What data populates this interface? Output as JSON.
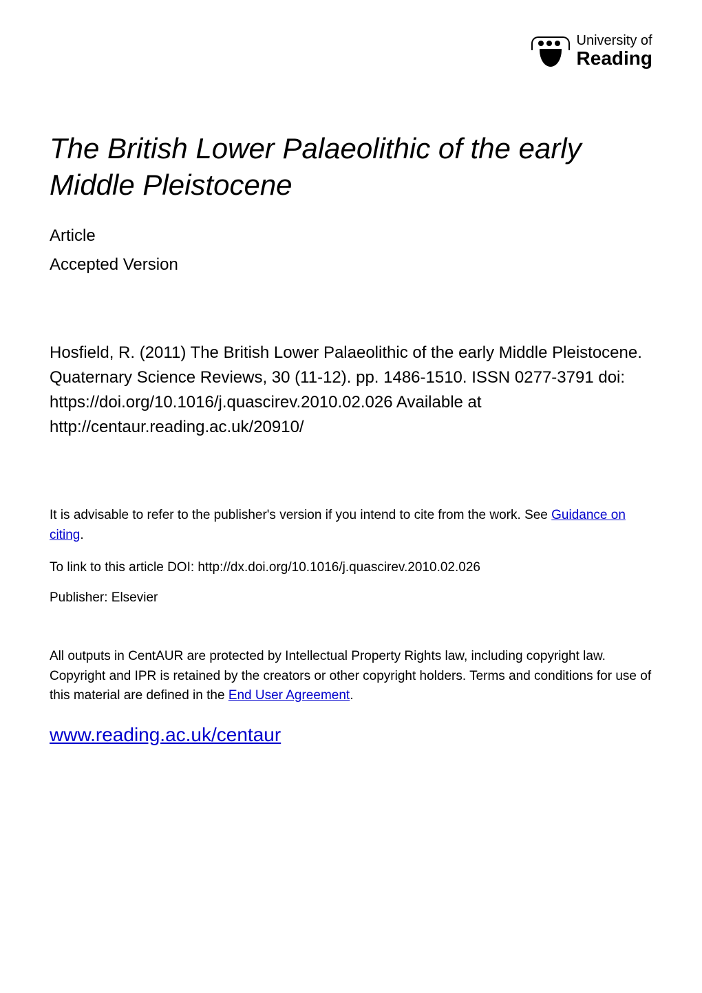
{
  "logo": {
    "line1": "University of",
    "line2": "Reading"
  },
  "title": "The British Lower Palaeolithic of the early Middle Pleistocene",
  "meta": {
    "type": "Article",
    "version": "Accepted Version"
  },
  "citation": "Hosfield, R. (2011) The British Lower Palaeolithic of the early Middle Pleistocene. Quaternary Science Reviews, 30 (11-12). pp. 1486-1510. ISSN 0277-3791 doi: https://doi.org/10.1016/j.quascirev.2010.02.026 Available at http://centaur.reading.ac.uk/20910/",
  "advice": {
    "prefix": "It is advisable to refer to the publisher's version if you intend to cite from the work.  See ",
    "link_text": "Guidance on citing",
    "suffix": "."
  },
  "doi": {
    "label": "To link to this article DOI: ",
    "value": "http://dx.doi.org/10.1016/j.quascirev.2010.02.026"
  },
  "publisher": {
    "label": "Publisher: ",
    "value": "Elsevier"
  },
  "rights": {
    "prefix": "All outputs in CentAUR are protected by Intellectual Property Rights law, including copyright law. Copyright and IPR is retained by the creators or other copyright holders. Terms and conditions for use of this material are defined in the ",
    "link_text": "End User Agreement",
    "suffix": "."
  },
  "centaur_url": "www.reading.ac.uk/centaur"
}
